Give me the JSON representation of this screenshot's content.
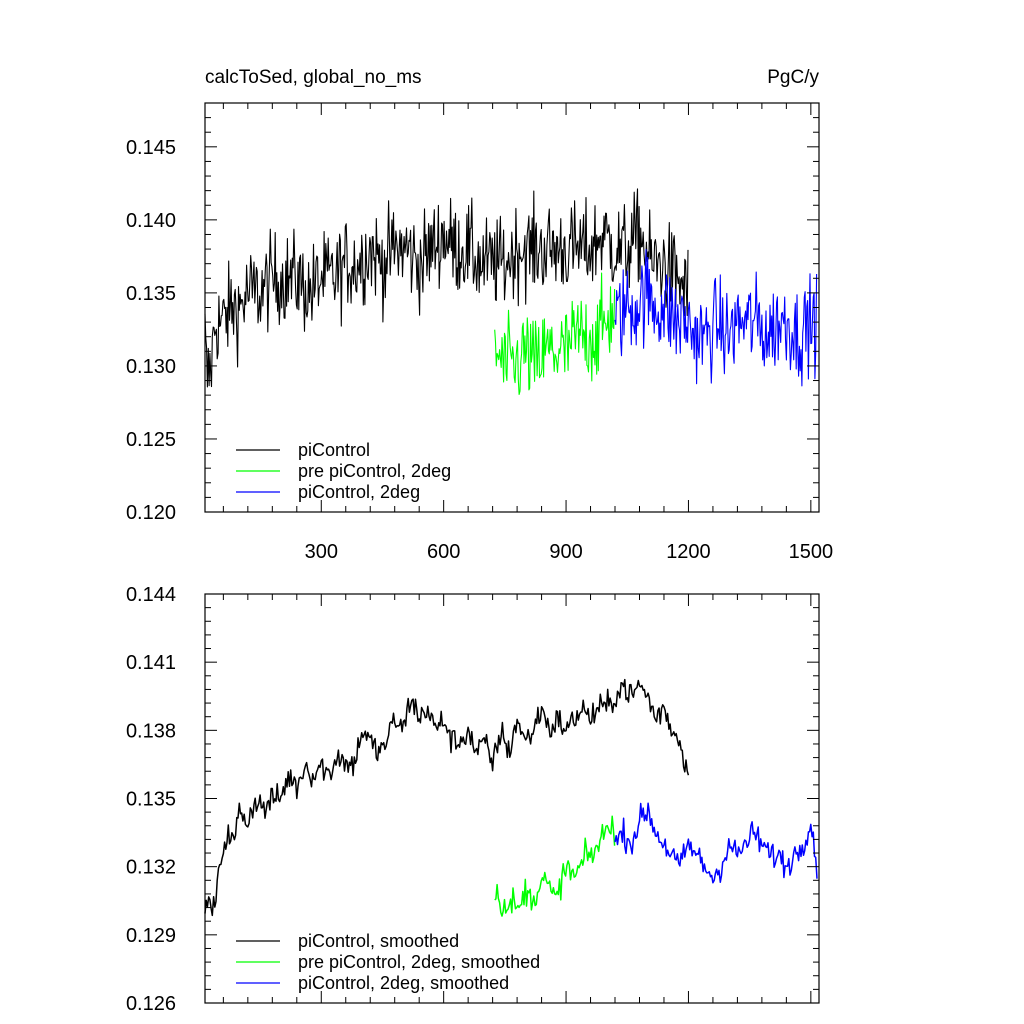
{
  "chart_data": [
    {
      "type": "line",
      "title_left": "calcToSed, global_no_ms",
      "title_right": "PgC/y",
      "xlim": [
        15,
        1520
      ],
      "ylim": [
        0.12,
        0.148
      ],
      "xticks": [
        300,
        600,
        900,
        1200,
        1500
      ],
      "xtick_labels": [
        "300",
        "600",
        "900",
        "1200",
        "1500"
      ],
      "yticks": [
        0.12,
        0.125,
        0.13,
        0.135,
        0.14,
        0.145
      ],
      "ytick_labels": [
        "0.120",
        "0.125",
        "0.130",
        "0.135",
        "0.140",
        "0.145"
      ],
      "legend_position": "bottom-left",
      "series": [
        {
          "name": "piControl",
          "color": "#000000",
          "x": [
            15,
            20,
            30,
            40,
            60,
            80,
            100,
            120,
            150,
            180,
            210,
            240,
            270,
            300,
            330,
            360,
            390,
            420,
            450,
            480,
            510,
            540,
            570,
            600,
            630,
            660,
            690,
            720,
            750,
            780,
            810,
            840,
            870,
            900,
            930,
            960,
            990,
            1020,
            1050,
            1080,
            1110,
            1140,
            1170,
            1200
          ],
          "values": [
            0.132,
            0.129,
            0.13,
            0.133,
            0.133,
            0.134,
            0.134,
            0.135,
            0.135,
            0.136,
            0.136,
            0.136,
            0.135,
            0.136,
            0.136,
            0.137,
            0.137,
            0.138,
            0.137,
            0.138,
            0.138,
            0.137,
            0.138,
            0.139,
            0.138,
            0.138,
            0.137,
            0.137,
            0.137,
            0.138,
            0.138,
            0.138,
            0.138,
            0.138,
            0.138,
            0.138,
            0.139,
            0.138,
            0.138,
            0.139,
            0.137,
            0.137,
            0.136,
            0.135
          ]
        },
        {
          "name": "pre piControl, 2deg",
          "color": "#00ff00",
          "x": [
            725,
            750,
            775,
            800,
            825,
            850,
            875,
            900,
            925,
            950,
            975,
            1000,
            1020
          ],
          "values": [
            0.131,
            0.13,
            0.13,
            0.131,
            0.13,
            0.131,
            0.131,
            0.131,
            0.132,
            0.132,
            0.132,
            0.133,
            0.134
          ]
        },
        {
          "name": "piControl, 2deg",
          "color": "#0000ff",
          "x": [
            1020,
            1045,
            1070,
            1095,
            1120,
            1145,
            1170,
            1195,
            1220,
            1245,
            1270,
            1295,
            1320,
            1345,
            1370,
            1395,
            1420,
            1445,
            1470,
            1495,
            1515
          ],
          "values": [
            0.133,
            0.134,
            0.134,
            0.135,
            0.134,
            0.134,
            0.133,
            0.133,
            0.132,
            0.132,
            0.133,
            0.132,
            0.133,
            0.133,
            0.133,
            0.132,
            0.133,
            0.133,
            0.132,
            0.133,
            0.133
          ]
        }
      ]
    },
    {
      "type": "line",
      "xlim": [
        15,
        1520
      ],
      "ylim": [
        0.126,
        0.144
      ],
      "xticks": [
        300,
        600,
        900,
        1200,
        1500
      ],
      "yticks": [
        0.126,
        0.129,
        0.132,
        0.135,
        0.138,
        0.141,
        0.144
      ],
      "ytick_labels": [
        "0.126",
        "0.129",
        "0.132",
        "0.135",
        "0.138",
        "0.141",
        "0.144"
      ],
      "legend_position": "bottom-left",
      "series": [
        {
          "name": "piControl, smoothed",
          "color": "#000000",
          "x": [
            15,
            25,
            35,
            45,
            55,
            70,
            85,
            100,
            120,
            140,
            160,
            180,
            200,
            220,
            240,
            260,
            280,
            300,
            320,
            340,
            360,
            380,
            400,
            420,
            440,
            460,
            480,
            500,
            520,
            540,
            560,
            580,
            600,
            620,
            640,
            660,
            680,
            700,
            720,
            740,
            760,
            780,
            800,
            820,
            840,
            860,
            880,
            900,
            920,
            940,
            960,
            980,
            1000,
            1020,
            1040,
            1060,
            1080,
            1100,
            1120,
            1140,
            1160,
            1180,
            1200
          ],
          "values": [
            0.13,
            0.1305,
            0.13,
            0.131,
            0.1325,
            0.1335,
            0.133,
            0.1345,
            0.134,
            0.135,
            0.1345,
            0.135,
            0.135,
            0.136,
            0.1355,
            0.1365,
            0.136,
            0.1365,
            0.136,
            0.137,
            0.1365,
            0.1365,
            0.138,
            0.1375,
            0.137,
            0.1375,
            0.1385,
            0.138,
            0.1395,
            0.1385,
            0.139,
            0.138,
            0.1385,
            0.1375,
            0.1375,
            0.138,
            0.137,
            0.1375,
            0.1365,
            0.138,
            0.137,
            0.1385,
            0.1375,
            0.138,
            0.139,
            0.138,
            0.1385,
            0.138,
            0.1385,
            0.139,
            0.1385,
            0.139,
            0.139,
            0.1395,
            0.14,
            0.1395,
            0.14,
            0.1395,
            0.1385,
            0.139,
            0.138,
            0.1375,
            0.136
          ]
        },
        {
          "name": "pre piControl, 2deg, smoothed",
          "color": "#00ff00",
          "x": [
            725,
            740,
            755,
            770,
            785,
            800,
            815,
            830,
            845,
            860,
            875,
            890,
            905,
            920,
            935,
            950,
            965,
            980,
            995,
            1010,
            1020
          ],
          "values": [
            0.131,
            0.1305,
            0.13,
            0.1305,
            0.13,
            0.131,
            0.1305,
            0.131,
            0.1315,
            0.131,
            0.1305,
            0.1315,
            0.132,
            0.1315,
            0.132,
            0.1325,
            0.1325,
            0.133,
            0.1335,
            0.134,
            0.1335
          ]
        },
        {
          "name": "piControl, 2deg, smoothed",
          "color": "#0000ff",
          "x": [
            1020,
            1040,
            1060,
            1080,
            1100,
            1120,
            1140,
            1160,
            1180,
            1200,
            1220,
            1240,
            1260,
            1280,
            1300,
            1320,
            1340,
            1360,
            1380,
            1400,
            1420,
            1440,
            1460,
            1480,
            1500,
            1515
          ],
          "values": [
            0.133,
            0.1335,
            0.133,
            0.134,
            0.1345,
            0.1335,
            0.133,
            0.1325,
            0.132,
            0.133,
            0.1325,
            0.132,
            0.1315,
            0.132,
            0.133,
            0.1325,
            0.133,
            0.1335,
            0.133,
            0.1325,
            0.1325,
            0.132,
            0.1325,
            0.133,
            0.134,
            0.132
          ]
        }
      ]
    }
  ]
}
